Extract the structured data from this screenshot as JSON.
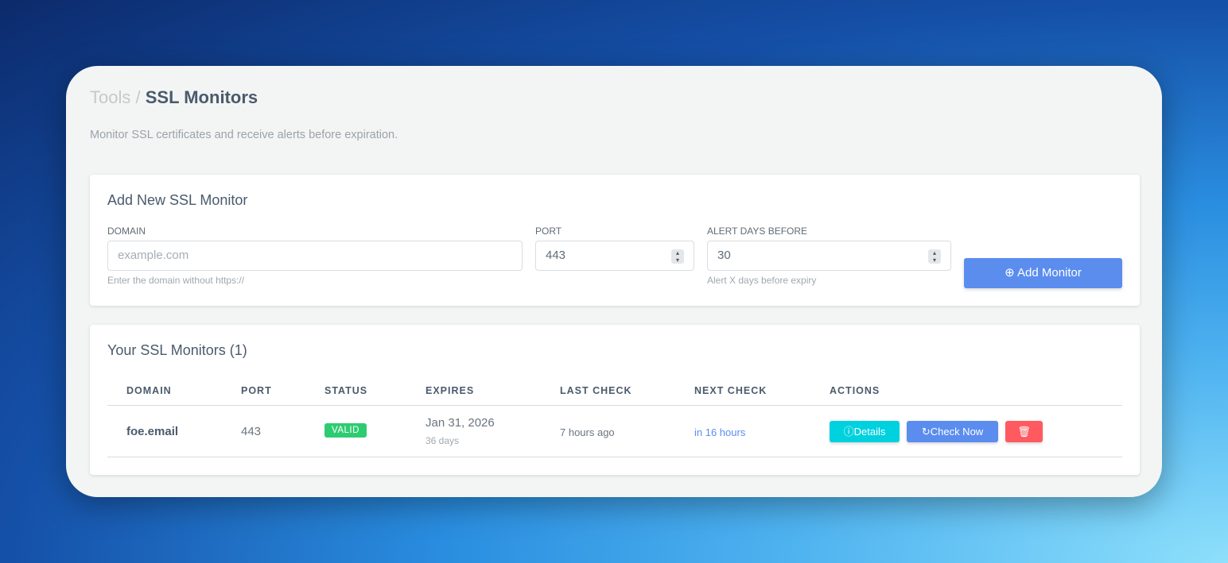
{
  "breadcrumb": {
    "parent": "Tools",
    "separator": "/",
    "current": "SSL Monitors"
  },
  "subtitle": "Monitor SSL certificates and receive alerts before expiration.",
  "add_form": {
    "title": "Add New SSL Monitor",
    "domain": {
      "label": "DOMAIN",
      "placeholder": "example.com",
      "help": "Enter the domain without https://"
    },
    "port": {
      "label": "PORT",
      "value": "443"
    },
    "alert": {
      "label": "ALERT DAYS BEFORE",
      "value": "30",
      "help": "Alert X days before expiry"
    },
    "submit_label": "Add Monitor"
  },
  "monitors": {
    "title": "Your SSL Monitors (1)",
    "columns": [
      "DOMAIN",
      "PORT",
      "STATUS",
      "EXPIRES",
      "LAST CHECK",
      "NEXT CHECK",
      "ACTIONS"
    ],
    "rows": [
      {
        "domain": "foe.email",
        "port": "443",
        "status": "VALID",
        "expires": "Jan 31, 2026",
        "expires_in": "36 days",
        "last_check": "7 hours ago",
        "next_check": "in 16 hours"
      }
    ],
    "actions": {
      "details": "Details",
      "check_now": "Check Now",
      "delete_icon": "trash-icon"
    }
  },
  "colors": {
    "primary": "#5b8def",
    "info": "#00d1df",
    "danger": "#ff5a5f",
    "success": "#2ecc71"
  }
}
